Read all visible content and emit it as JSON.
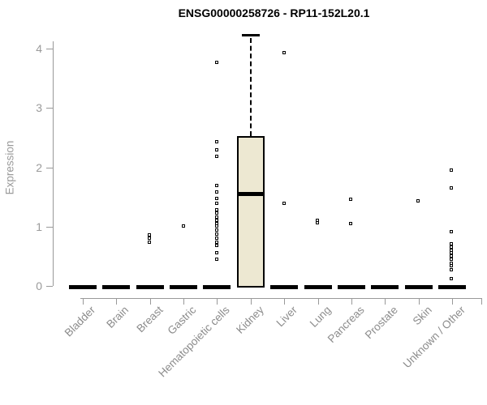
{
  "chart_data": {
    "type": "boxplot",
    "title": "ENSG00000258726 - RP11-152L20.1",
    "ylabel": "Expression",
    "xlabel": "",
    "ylim": [
      0,
      4.3
    ],
    "yticks": [
      0,
      1,
      2,
      3,
      4
    ],
    "grid": false,
    "legend": "none",
    "categories": [
      "Bladder",
      "Brain",
      "Breast",
      "Gastric",
      "Hematopoietic cells",
      "Kidney",
      "Liver",
      "Lung",
      "Pancreas",
      "Prostate",
      "Skin",
      "Unknown / Other"
    ],
    "boxes": [
      {
        "category": "Bladder",
        "q1": 0,
        "median": 0,
        "q3": 0,
        "whisker_low": 0,
        "whisker_high": 0,
        "outliers": []
      },
      {
        "category": "Brain",
        "q1": 0,
        "median": 0,
        "q3": 0,
        "whisker_low": 0,
        "whisker_high": 0,
        "outliers": []
      },
      {
        "category": "Breast",
        "q1": 0,
        "median": 0,
        "q3": 0,
        "whisker_low": 0,
        "whisker_high": 0,
        "outliers": [
          0.86,
          0.8,
          0.73
        ]
      },
      {
        "category": "Gastric",
        "q1": 0,
        "median": 0,
        "q3": 0,
        "whisker_low": 0,
        "whisker_high": 0,
        "outliers": [
          1.0
        ]
      },
      {
        "category": "Hematopoietic cells",
        "q1": 0,
        "median": 0,
        "q3": 0,
        "whisker_low": 0,
        "whisker_high": 0,
        "outliers": [
          3.76,
          2.43,
          2.29,
          2.18,
          1.68,
          1.58,
          1.47,
          1.38,
          1.28,
          1.22,
          1.16,
          1.1,
          1.05,
          1.0,
          0.93,
          0.87,
          0.8,
          0.73,
          0.68,
          0.55,
          0.45
        ]
      },
      {
        "category": "Kidney",
        "q1": 0,
        "median": 1.55,
        "q3": 2.52,
        "whisker_low": 0,
        "whisker_high": 4.23,
        "outliers": []
      },
      {
        "category": "Liver",
        "q1": 0,
        "median": 0,
        "q3": 0,
        "whisker_low": 0,
        "whisker_high": 0,
        "outliers": [
          3.93,
          1.39
        ]
      },
      {
        "category": "Lung",
        "q1": 0,
        "median": 0,
        "q3": 0,
        "whisker_low": 0,
        "whisker_high": 0,
        "outliers": [
          1.1,
          1.06
        ]
      },
      {
        "category": "Pancreas",
        "q1": 0,
        "median": 0,
        "q3": 0,
        "whisker_low": 0,
        "whisker_high": 0,
        "outliers": [
          1.45,
          1.04
        ]
      },
      {
        "category": "Prostate",
        "q1": 0,
        "median": 0,
        "q3": 0,
        "whisker_low": 0,
        "whisker_high": 0,
        "outliers": []
      },
      {
        "category": "Skin",
        "q1": 0,
        "median": 0,
        "q3": 0,
        "whisker_low": 0,
        "whisker_high": 0,
        "outliers": [
          1.43
        ]
      },
      {
        "category": "Unknown / Other",
        "q1": 0,
        "median": 0,
        "q3": 0,
        "whisker_low": 0,
        "whisker_high": 0,
        "outliers": [
          1.94,
          1.65,
          0.91,
          0.7,
          0.65,
          0.6,
          0.55,
          0.5,
          0.45,
          0.38,
          0.33,
          0.27,
          0.11
        ]
      }
    ],
    "colors": {
      "box_fill": "#EDE8D2",
      "box_border": "#000000",
      "median": "#000000",
      "flat_bar": "#000000",
      "axis": "#999999",
      "tick_label": "#9a9a9a",
      "outlier_border": "#000000",
      "outlier_fill": "#FFFFFF",
      "title": "#000000",
      "background": "#FFFFFF"
    }
  }
}
